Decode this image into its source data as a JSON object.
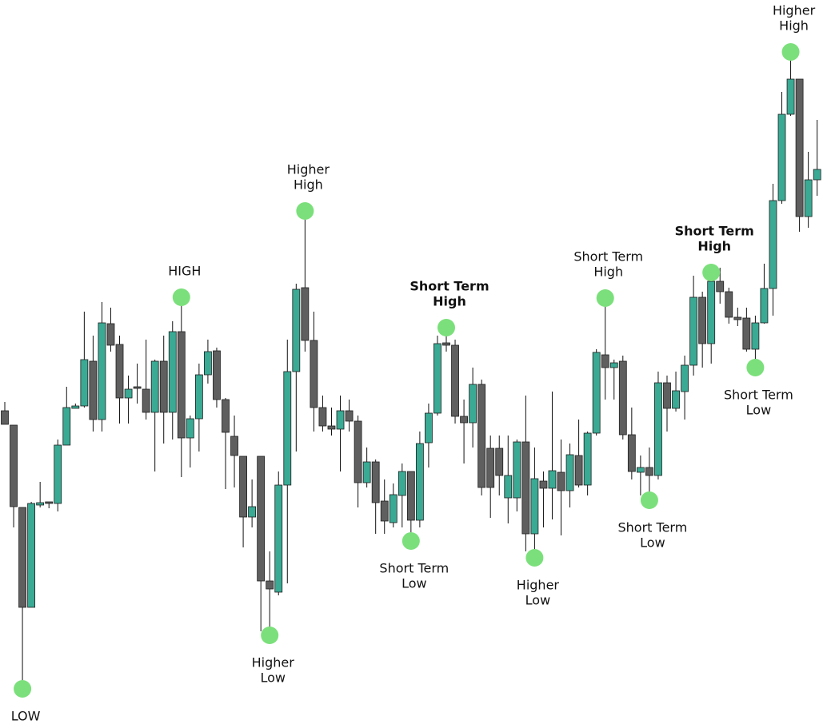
{
  "chart_data": {
    "type": "candlestick",
    "ylim": [
      89,
      1000
    ],
    "up_color": "#3aaa94",
    "down_color": "#5f5f5f",
    "marker_color": "#7be07b",
    "open": [
      486,
      468,
      365,
      240,
      368,
      372,
      370,
      443,
      489,
      492,
      548,
      475,
      595,
      569,
      502,
      516,
      513,
      484,
      548,
      484,
      585,
      452,
      476,
      531,
      561,
      500,
      454,
      429,
      353,
      429,
      273,
      259,
      393,
      535,
      640,
      574,
      490,
      467,
      463,
      486,
      473,
      396,
      422,
      373,
      346,
      380,
      410,
      349,
      446,
      483,
      571,
      568,
      479,
      471,
      519,
      439,
      439,
      377,
      377,
      447,
      332,
      398,
      389,
      409,
      386,
      430,
      393,
      458,
      556,
      540,
      548,
      456,
      409,
      415,
      405,
      521,
      489,
      510,
      543,
      628,
      570,
      648,
      635,
      603,
      602,
      563,
      596,
      639,
      749,
      857,
      901,
      729,
      775
    ],
    "high": [
      497,
      468,
      365,
      372,
      397,
      372,
      450,
      516,
      495,
      610,
      580,
      622,
      615,
      580,
      530,
      545,
      575,
      550,
      580,
      598,
      628,
      480,
      545,
      575,
      565,
      502,
      480,
      429,
      400,
      429,
      310,
      410,
      575,
      645,
      736,
      610,
      505,
      490,
      505,
      500,
      480,
      440,
      425,
      400,
      395,
      420,
      410,
      460,
      495,
      580,
      590,
      575,
      500,
      540,
      525,
      455,
      455,
      455,
      450,
      505,
      440,
      410,
      510,
      450,
      445,
      475,
      460,
      563,
      627,
      550,
      555,
      490,
      430,
      440,
      535,
      530,
      535,
      555,
      655,
      635,
      659,
      665,
      640,
      615,
      615,
      605,
      670,
      770,
      885,
      935,
      901,
      810,
      850
    ],
    "low": [
      469,
      340,
      138,
      240,
      365,
      364,
      360,
      443,
      489,
      490,
      460,
      460,
      560,
      470,
      470,
      495,
      475,
      410,
      445,
      450,
      403,
      415,
      435,
      520,
      490,
      388,
      390,
      315,
      340,
      210,
      205,
      255,
      270,
      435,
      560,
      460,
      460,
      455,
      410,
      460,
      365,
      390,
      332,
      332,
      340,
      340,
      323,
      340,
      415,
      480,
      560,
      470,
      420,
      440,
      380,
      352,
      380,
      345,
      360,
      310,
      302,
      340,
      350,
      330,
      365,
      390,
      380,
      455,
      500,
      500,
      450,
      400,
      380,
      374,
      400,
      460,
      485,
      475,
      530,
      540,
      545,
      620,
      595,
      592,
      560,
      540,
      595,
      605,
      745,
      855,
      710,
      715,
      755
    ],
    "close": [
      469,
      366,
      240,
      370,
      371,
      370,
      443,
      490,
      492,
      550,
      475,
      596,
      568,
      502,
      513,
      514,
      484,
      548,
      484,
      585,
      452,
      476,
      531,
      560,
      500,
      459,
      430,
      353,
      366,
      273,
      263,
      393,
      535,
      638,
      574,
      490,
      467,
      463,
      486,
      473,
      396,
      422,
      371,
      348,
      381,
      410,
      349,
      445,
      483,
      570,
      568,
      479,
      471,
      519,
      390,
      390,
      405,
      405,
      447,
      332,
      401,
      389,
      411,
      386,
      431,
      393,
      458,
      559,
      540,
      546,
      456,
      410,
      415,
      405,
      521,
      489,
      511,
      543,
      628,
      570,
      648,
      635,
      603,
      600,
      563,
      596,
      639,
      749,
      857,
      901,
      729,
      775,
      788
    ],
    "annotations": [
      {
        "lines": [
          "LOW"
        ],
        "candle": 2,
        "value": 138,
        "position": "below",
        "bold": false
      },
      {
        "lines": [
          "HIGH"
        ],
        "candle": 20,
        "value": 628,
        "position": "above",
        "bold": false
      },
      {
        "lines": [
          "Higher",
          "Low"
        ],
        "candle": 30,
        "value": 205,
        "position": "below",
        "bold": false
      },
      {
        "lines": [
          "Higher",
          "High"
        ],
        "candle": 34,
        "value": 736,
        "position": "above",
        "bold": false
      },
      {
        "lines": [
          "Short Term",
          "Low"
        ],
        "candle": 46,
        "value": 323,
        "position": "below",
        "bold": false
      },
      {
        "lines": [
          "Short Term",
          "High"
        ],
        "candle": 50,
        "value": 590,
        "position": "above",
        "bold": true
      },
      {
        "lines": [
          "Higher",
          "Low"
        ],
        "candle": 60,
        "value": 302,
        "position": "below",
        "bold": false
      },
      {
        "lines": [
          "Short Term",
          "High"
        ],
        "candle": 68,
        "value": 627,
        "position": "above",
        "bold": false
      },
      {
        "lines": [
          "Short Term",
          "Low"
        ],
        "candle": 73,
        "value": 374,
        "position": "below",
        "bold": false
      },
      {
        "lines": [
          "Short Term",
          "High"
        ],
        "candle": 80,
        "value": 659,
        "position": "above",
        "bold": true
      },
      {
        "lines": [
          "Short Term",
          "Low"
        ],
        "candle": 85,
        "value": 540,
        "position": "below",
        "bold": false
      },
      {
        "lines": [
          "Higher",
          "High"
        ],
        "candle": 89,
        "value": 935,
        "position": "above",
        "bold": false
      }
    ]
  }
}
